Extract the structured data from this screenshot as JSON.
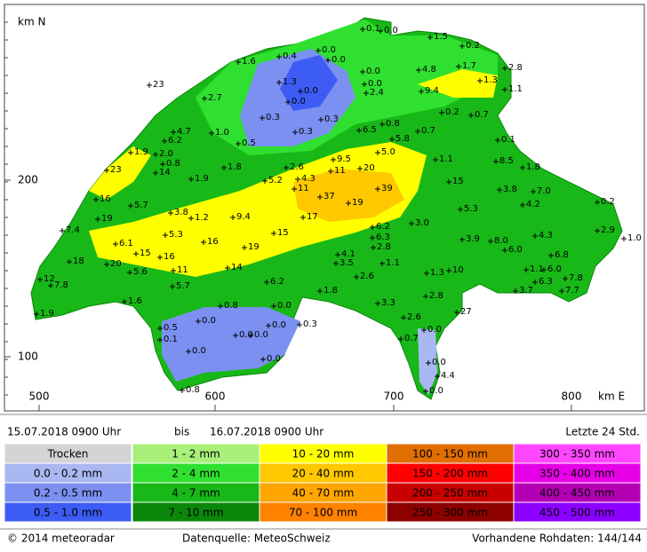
{
  "axis": {
    "y_label": "km N",
    "x_label": "km E",
    "yticks": [
      "200",
      "100"
    ],
    "xticks": [
      "500",
      "600",
      "700",
      "800"
    ]
  },
  "stations": [
    "0.1",
    "0.0",
    "0.0",
    "0.0",
    "0.4",
    "1.6",
    "1.5",
    "0.2",
    "1.7",
    "2.8",
    "4.8",
    "0.0",
    "0.0",
    "1.3",
    "0.0",
    "0.0",
    "2.4",
    "9.4",
    "1.3",
    "1.1",
    "23",
    "2.7",
    "0.3",
    "0.3",
    "0.2",
    "0.7",
    "0.8",
    "0.7",
    "6.5",
    "5.8",
    "0.3",
    "1.0",
    "0.5",
    "4.7",
    "6.2",
    "0.1",
    "1.9",
    "2.0",
    "0.8",
    "14",
    "23",
    "1.8",
    "2.6",
    "9.5",
    "11",
    "20",
    "5.0",
    "1.1",
    "8.5",
    "1.8",
    "1.9",
    "5.2",
    "4.3",
    "11",
    "37",
    "19",
    "39",
    "15",
    "3.8",
    "7.0",
    "4.2",
    "0.2",
    "16",
    "5.7",
    "3.8",
    "1.2",
    "9.4",
    "17",
    "6.2",
    "3.0",
    "5.3",
    "6.3",
    "2.8",
    "19",
    "7.4",
    "5.3",
    "16",
    "19",
    "15",
    "6.1",
    "15",
    "16",
    "3.9",
    "8.0",
    "4.3",
    "2.9",
    "1.0",
    "4.1",
    "3.5",
    "20",
    "5.6",
    "11",
    "14",
    "1.1",
    "1.3",
    "10",
    "6.0",
    "1.1",
    "6.8",
    "6.0",
    "7.8",
    "6.3",
    "3.7",
    "7.7",
    "12",
    "7.8",
    "18",
    "5.7",
    "6.2",
    "2.6",
    "1.8",
    "1.6",
    "0.8",
    "0.0",
    "2.8",
    "27",
    "3.3",
    "1.9",
    "0.5",
    "0.1",
    "0.0",
    "0.0",
    "0.3",
    "0.0",
    "0.0",
    "2.6",
    "0.7",
    "0.0",
    "0.0",
    "0.0",
    "0.0",
    "4.4",
    "0.0",
    "0.8"
  ],
  "header": {
    "from": "15.07.2018 0900 Uhr",
    "connector": "bis",
    "to": "16.07.2018 0900 Uhr",
    "window": "Letzte 24 Std."
  },
  "legend": [
    {
      "label": "Trocken",
      "color": "#d4d4d4"
    },
    {
      "label": "0.0 - 0.2 mm",
      "color": "#aab8f2"
    },
    {
      "label": "0.2 - 0.5 mm",
      "color": "#7b90f0"
    },
    {
      "label": "0.5 - 1.0 mm",
      "color": "#3c5cf5"
    },
    {
      "label": "1 - 2 mm",
      "color": "#a8f07a"
    },
    {
      "label": "2 - 4 mm",
      "color": "#30e030"
    },
    {
      "label": "4 - 7 mm",
      "color": "#18b818"
    },
    {
      "label": "7 - 10 mm",
      "color": "#0a870a"
    },
    {
      "label": "10 - 20 mm",
      "color": "#ffff00"
    },
    {
      "label": "20 - 40 mm",
      "color": "#ffc800"
    },
    {
      "label": "40 - 70 mm",
      "color": "#ffa500"
    },
    {
      "label": "70 - 100 mm",
      "color": "#ff8200"
    },
    {
      "label": "100 - 150 mm",
      "color": "#e06e00"
    },
    {
      "label": "150 - 200 mm",
      "color": "#ff0000"
    },
    {
      "label": "200 - 250 mm",
      "color": "#c80000"
    },
    {
      "label": "250 - 300 mm",
      "color": "#8c0000"
    },
    {
      "label": "300 - 350 mm",
      "color": "#ff46ff"
    },
    {
      "label": "350 - 400 mm",
      "color": "#e600e6"
    },
    {
      "label": "400 - 450 mm",
      "color": "#b400b4"
    },
    {
      "label": "450 - 500 mm",
      "color": "#8c00ff"
    }
  ],
  "footer": {
    "copyright": "© 2014 meteoradar",
    "source": "Datenquelle: MeteoSchweiz",
    "raw": "Vorhandene Rohdaten: 144/144"
  }
}
